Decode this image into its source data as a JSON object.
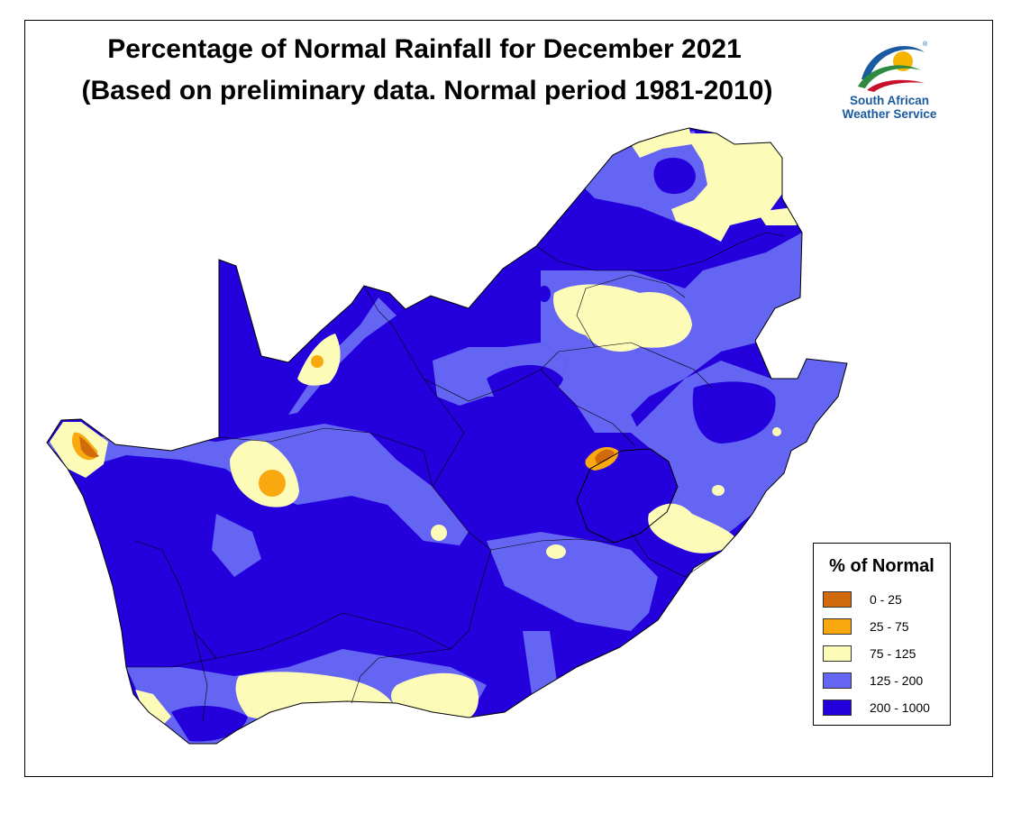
{
  "title": "Percentage of Normal Rainfall for December 2021",
  "subtitle": "(Based on preliminary data. Normal period 1981-2010)",
  "logo": {
    "line1": "South African",
    "line2": "Weather Service",
    "registered": "®"
  },
  "legend": {
    "title": "% of Normal",
    "items": [
      {
        "label": "0 - 25",
        "color": "#d16a0c"
      },
      {
        "label": "25 - 75",
        "color": "#f9a80f"
      },
      {
        "label": "75 - 125",
        "color": "#fdfbb8"
      },
      {
        "label": "125 - 200",
        "color": "#6565f3"
      },
      {
        "label": "200 - 1000",
        "color": "#2300dc"
      }
    ]
  },
  "colors": {
    "very_high": "#2300dc",
    "high": "#6565f3",
    "normal": "#fdfbb8",
    "low": "#f9a80f",
    "very_low": "#d16a0c",
    "logo_blue": "#1a5aa0"
  }
}
